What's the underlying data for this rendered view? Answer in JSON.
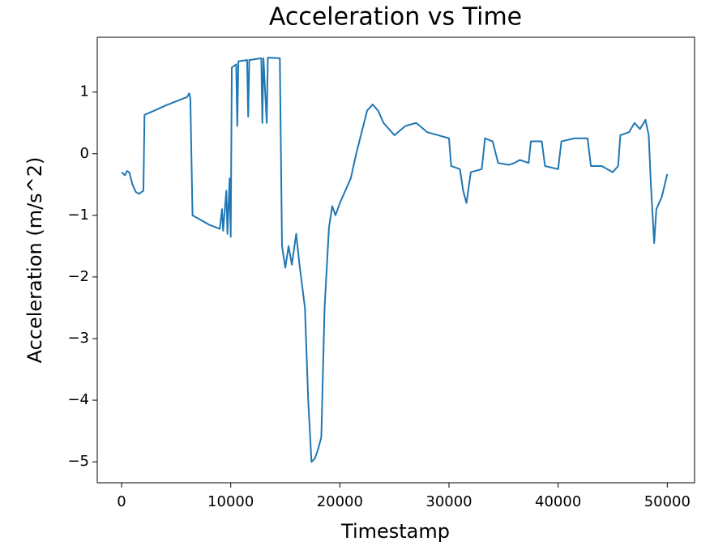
{
  "chart_data": {
    "type": "line",
    "title": "Acceleration vs Time",
    "x_label": "Timestamp",
    "y_label": "Acceleration (m/s^2)",
    "x": [
      0,
      300,
      500,
      700,
      1000,
      1300,
      1600,
      2000,
      2100,
      3000,
      4000,
      5000,
      6000,
      6200,
      6300,
      6500,
      7000,
      8000,
      9000,
      9200,
      9300,
      9600,
      9700,
      9900,
      10000,
      10100,
      10500,
      10600,
      10700,
      11500,
      11600,
      11700,
      12800,
      12900,
      13000,
      13300,
      13400,
      14500,
      14700,
      15000,
      15300,
      15600,
      16000,
      16300,
      16800,
      17100,
      17400,
      17700,
      18000,
      18300,
      18600,
      19000,
      19300,
      19600,
      20000,
      21000,
      21500,
      22000,
      22500,
      23000,
      23500,
      24000,
      25000,
      26000,
      27000,
      28000,
      29000,
      30000,
      30200,
      31000,
      31300,
      31600,
      32000,
      33000,
      33300,
      34000,
      34500,
      35500,
      36000,
      36500,
      37300,
      37500,
      38500,
      38800,
      40000,
      40300,
      41500,
      42000,
      42700,
      43000,
      44000,
      45000,
      45500,
      45700,
      46500,
      47000,
      47500,
      48000,
      48300,
      48500,
      48800,
      49000,
      49500,
      50000
    ],
    "series": [
      {
        "name": "Acceleration",
        "color": "#1f77b4",
        "values": [
          -0.3,
          -0.35,
          -0.28,
          -0.3,
          -0.5,
          -0.62,
          -0.65,
          -0.6,
          0.63,
          0.7,
          0.78,
          0.85,
          0.92,
          0.98,
          0.9,
          -1.0,
          -1.05,
          -1.15,
          -1.22,
          -0.9,
          -1.25,
          -0.6,
          -1.3,
          -0.4,
          -1.35,
          1.4,
          1.45,
          0.45,
          1.5,
          1.52,
          0.6,
          1.52,
          1.55,
          0.5,
          1.55,
          0.5,
          1.56,
          1.55,
          -1.5,
          -1.85,
          -1.5,
          -1.8,
          -1.3,
          -1.8,
          -2.5,
          -4.0,
          -5.0,
          -4.95,
          -4.8,
          -4.6,
          -2.5,
          -1.2,
          -0.85,
          -1.0,
          -0.8,
          -0.4,
          0,
          0.35,
          0.7,
          0.8,
          0.7,
          0.5,
          0.3,
          0.45,
          0.5,
          0.35,
          0.3,
          0.25,
          -0.2,
          -0.25,
          -0.6,
          -0.8,
          -0.3,
          -0.25,
          0.25,
          0.2,
          -0.15,
          -0.18,
          -0.15,
          -0.1,
          -0.15,
          0.2,
          0.2,
          -0.2,
          -0.25,
          0.2,
          0.25,
          0.25,
          0.25,
          -0.2,
          -0.2,
          -0.3,
          -0.2,
          0.3,
          0.35,
          0.5,
          0.4,
          0.55,
          0.3,
          -0.5,
          -1.45,
          -0.9,
          -0.7,
          -0.33
        ]
      }
    ],
    "xlim": [
      -2230,
      52500
    ],
    "ylim": [
      -5.34,
      1.89
    ],
    "xticks": [
      0,
      10000,
      20000,
      30000,
      40000,
      50000
    ],
    "yticks": [
      {
        "value": -5,
        "label": "−5"
      },
      {
        "value": -4,
        "label": "−4"
      },
      {
        "value": -3,
        "label": "−3"
      },
      {
        "value": -2,
        "label": "−2"
      },
      {
        "value": -1,
        "label": "−1"
      },
      0,
      1
    ]
  }
}
